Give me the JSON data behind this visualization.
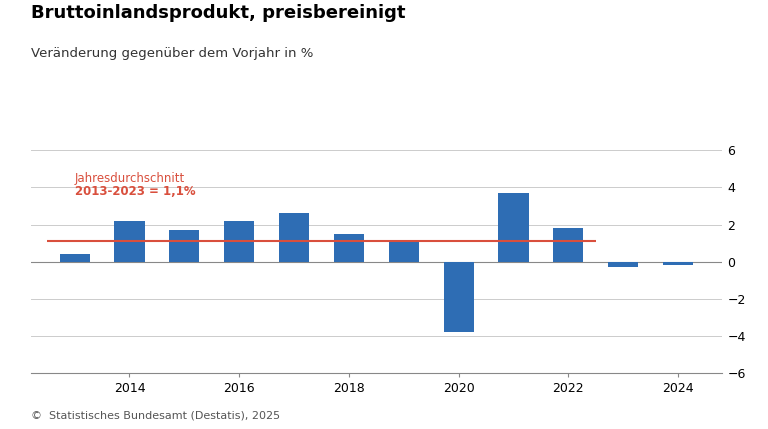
{
  "title": "Bruttoinlandsprodukt, preisbereinigt",
  "subtitle": "Veränderung gegenüber dem Vorjahr in %",
  "years": [
    2013,
    2014,
    2015,
    2016,
    2017,
    2018,
    2019,
    2020,
    2021,
    2022,
    2023,
    2024
  ],
  "values": [
    0.4,
    2.2,
    1.7,
    2.2,
    2.6,
    1.5,
    1.1,
    -3.8,
    3.7,
    1.8,
    -0.3,
    -0.2
  ],
  "bar_color": "#2e6db4",
  "avg_line_value": 1.1,
  "avg_line_color": "#d94f3d",
  "avg_label_line1": "Jahresdurchschnitt",
  "avg_label_line2": "2013-2023 = 1,1%",
  "ylim": [
    -6,
    6
  ],
  "yticks": [
    -6,
    -4,
    -2,
    0,
    2,
    4,
    6
  ],
  "background_color": "#ffffff",
  "grid_color": "#cccccc",
  "axis_color": "#888888",
  "bar_width": 0.55,
  "title_fontsize": 13,
  "subtitle_fontsize": 9.5,
  "tick_fontsize": 9,
  "footer_fontsize": 8,
  "avg_label_fontsize": 8.5,
  "footer_text": "©  Statistisches Bundesamt (Destatis), 2025"
}
